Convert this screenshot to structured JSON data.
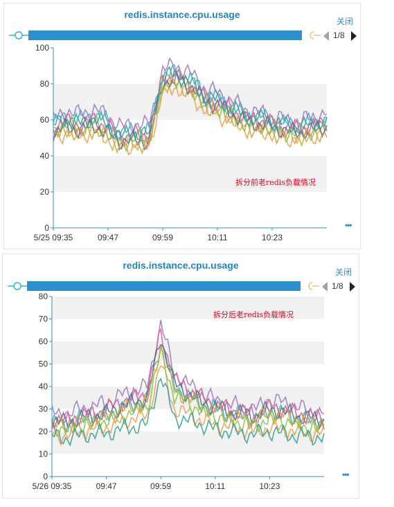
{
  "close_label": "关闭",
  "more_label": "•••",
  "colors": {
    "accent": "#2b8fd0",
    "title": "#1d86c6",
    "annotation": "#e0001b",
    "band": "#f1f1f1",
    "axis": "#2f8fd1"
  },
  "charts": [
    {
      "title": "redis.instance.cpu.usage",
      "pager": "1/8",
      "annotation": "拆分前老redis负载情况"
    },
    {
      "title": "redis.instance.cpu.usage",
      "pager": "1/8",
      "annotation": "拆分后老redis负载情况"
    }
  ],
  "chart_data": [
    {
      "type": "line",
      "title": "redis.instance.cpu.usage",
      "xlabel": "",
      "ylabel": "",
      "x_ticks": [
        "5/25 09:35",
        "09:47",
        "09:59",
        "10:11",
        "10:23"
      ],
      "x_range": [
        "09:35",
        "10:35"
      ],
      "y_ticks": [
        0,
        20,
        40,
        60,
        80,
        100
      ],
      "ylim": [
        0,
        100
      ],
      "grid_bands": true,
      "series_colors": [
        "#2fb8c4",
        "#9e7cc1",
        "#f0a050",
        "#8bc34a",
        "#e05a9a",
        "#5b6f8f",
        "#c6a93c",
        "#35a39a"
      ],
      "x": [
        "09:35",
        "09:38",
        "09:41",
        "09:44",
        "09:47",
        "09:50",
        "09:53",
        "09:56",
        "09:59",
        "10:02",
        "10:05",
        "10:08",
        "10:11",
        "10:14",
        "10:17",
        "10:20",
        "10:23",
        "10:26",
        "10:29",
        "10:32",
        "10:35"
      ],
      "series": [
        {
          "values": [
            58,
            62,
            60,
            63,
            59,
            52,
            55,
            54,
            85,
            86,
            83,
            75,
            72,
            68,
            63,
            62,
            60,
            58,
            57,
            59,
            60
          ]
        },
        {
          "values": [
            60,
            65,
            63,
            66,
            62,
            56,
            58,
            57,
            88,
            90,
            86,
            78,
            75,
            71,
            66,
            64,
            62,
            60,
            59,
            62,
            63
          ]
        },
        {
          "values": [
            50,
            53,
            51,
            54,
            49,
            44,
            46,
            45,
            76,
            78,
            74,
            66,
            63,
            59,
            55,
            54,
            52,
            50,
            49,
            51,
            52
          ]
        },
        {
          "values": [
            54,
            57,
            55,
            58,
            53,
            47,
            50,
            49,
            80,
            82,
            78,
            70,
            67,
            63,
            58,
            57,
            55,
            53,
            52,
            54,
            55
          ]
        },
        {
          "values": [
            56,
            59,
            57,
            60,
            56,
            50,
            52,
            51,
            83,
            84,
            80,
            72,
            70,
            66,
            61,
            60,
            58,
            56,
            55,
            57,
            58
          ]
        },
        {
          "values": [
            53,
            56,
            54,
            57,
            52,
            48,
            49,
            48,
            81,
            83,
            79,
            71,
            68,
            64,
            59,
            58,
            56,
            54,
            53,
            55,
            56
          ]
        },
        {
          "values": [
            51,
            54,
            52,
            55,
            50,
            46,
            47,
            46,
            78,
            80,
            76,
            68,
            65,
            61,
            56,
            55,
            53,
            51,
            50,
            52,
            53
          ]
        },
        {
          "values": [
            57,
            60,
            58,
            61,
            57,
            51,
            53,
            52,
            84,
            85,
            81,
            73,
            71,
            67,
            62,
            61,
            59,
            57,
            56,
            58,
            59
          ]
        }
      ]
    },
    {
      "type": "line",
      "title": "redis.instance.cpu.usage",
      "xlabel": "",
      "ylabel": "",
      "x_ticks": [
        "5/26 09:35",
        "09:47",
        "09:59",
        "10:11",
        "10:23"
      ],
      "x_range": [
        "09:35",
        "10:35"
      ],
      "y_ticks": [
        0,
        10,
        20,
        30,
        40,
        50,
        60,
        70,
        80
      ],
      "ylim": [
        0,
        80
      ],
      "grid_bands": true,
      "series_colors": [
        "#2fb8c4",
        "#9e7cc1",
        "#f0a050",
        "#8bc34a",
        "#e05a9a",
        "#5b6f8f",
        "#c6a93c",
        "#35a39a"
      ],
      "x": [
        "09:35",
        "09:38",
        "09:41",
        "09:44",
        "09:47",
        "09:50",
        "09:53",
        "09:56",
        "09:59",
        "10:02",
        "10:05",
        "10:08",
        "10:11",
        "10:14",
        "10:17",
        "10:20",
        "10:23",
        "10:26",
        "10:29",
        "10:32",
        "10:35"
      ],
      "series": [
        {
          "values": [
            24,
            23,
            25,
            26,
            27,
            30,
            32,
            34,
            60,
            40,
            36,
            32,
            30,
            28,
            27,
            26,
            29,
            28,
            26,
            25,
            24
          ]
        },
        {
          "values": [
            28,
            27,
            30,
            31,
            33,
            36,
            38,
            40,
            68,
            46,
            41,
            37,
            34,
            32,
            31,
            30,
            34,
            33,
            31,
            29,
            28
          ]
        },
        {
          "values": [
            19,
            18,
            20,
            21,
            22,
            24,
            26,
            27,
            50,
            30,
            28,
            25,
            23,
            22,
            21,
            20,
            22,
            21,
            20,
            19,
            19
          ]
        },
        {
          "values": [
            22,
            21,
            23,
            24,
            25,
            27,
            29,
            31,
            55,
            36,
            33,
            29,
            27,
            25,
            24,
            23,
            26,
            25,
            23,
            22,
            22
          ]
        },
        {
          "values": [
            26,
            25,
            27,
            28,
            30,
            33,
            35,
            37,
            64,
            43,
            39,
            35,
            32,
            30,
            29,
            28,
            31,
            30,
            28,
            27,
            26
          ]
        },
        {
          "values": [
            25,
            24,
            26,
            27,
            28,
            31,
            33,
            35,
            62,
            41,
            37,
            33,
            31,
            29,
            28,
            27,
            30,
            29,
            27,
            26,
            25
          ]
        },
        {
          "values": [
            23,
            22,
            24,
            25,
            26,
            29,
            31,
            33,
            58,
            38,
            35,
            31,
            29,
            27,
            26,
            25,
            28,
            27,
            25,
            24,
            23
          ]
        },
        {
          "values": [
            18,
            17,
            18,
            19,
            19,
            21,
            22,
            23,
            45,
            26,
            25,
            23,
            21,
            20,
            19,
            19,
            20,
            19,
            18,
            18,
            17
          ]
        }
      ]
    }
  ]
}
